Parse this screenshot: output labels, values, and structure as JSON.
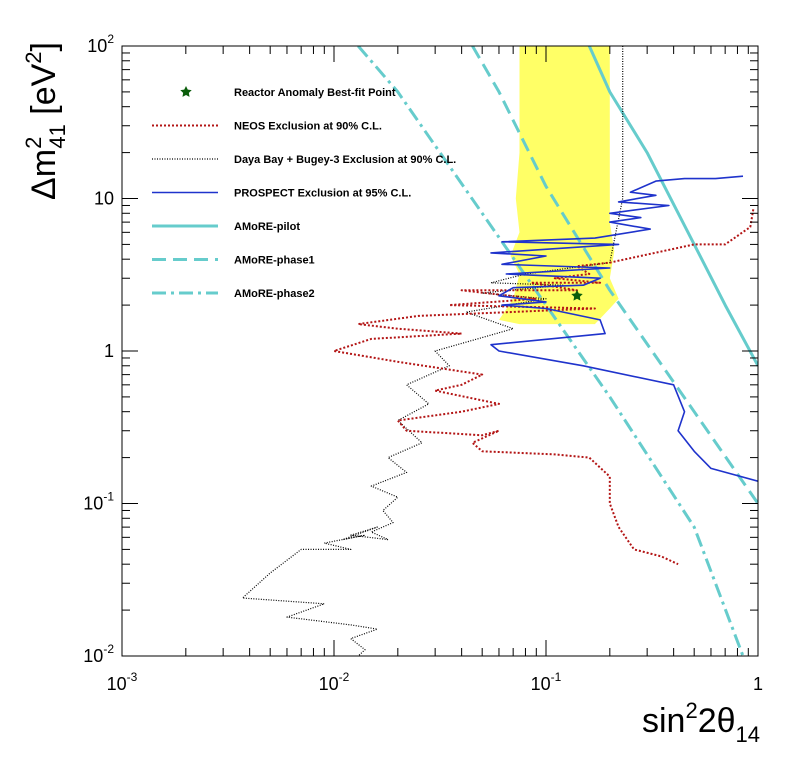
{
  "chart_data": {
    "type": "line",
    "xscale": "log",
    "yscale": "log",
    "xlim": [
      0.001,
      1
    ],
    "ylim": [
      0.01,
      100
    ],
    "x_ticks": [
      {
        "value": 0.001,
        "base": "10",
        "exp": "-3"
      },
      {
        "value": 0.01,
        "base": "10",
        "exp": "-2"
      },
      {
        "value": 0.1,
        "base": "10",
        "exp": "-1"
      },
      {
        "value": 1,
        "base": "1",
        "exp": ""
      }
    ],
    "y_ticks": [
      {
        "value": 0.01,
        "base": "10",
        "exp": "-2"
      },
      {
        "value": 0.1,
        "base": "10",
        "exp": "-1"
      },
      {
        "value": 1,
        "base": "1",
        "exp": ""
      },
      {
        "value": 10,
        "base": "10",
        "exp": ""
      },
      {
        "value": 100,
        "base": "10",
        "exp": "2"
      }
    ],
    "xlabel": {
      "main": "sin",
      "sup": "2",
      "mid": "2θ",
      "sub": "14"
    },
    "ylabel": {
      "main": "Δm",
      "sup": "2",
      "sub": "41",
      "unit_open": " [eV",
      "unit_sup": "2",
      "unit_close": "]"
    },
    "colors": {
      "neos": "#b31515",
      "dayabay": "#000000",
      "prospect": "#1f33cc",
      "amore": "#66cccc",
      "anomaly_region": "#ffff66",
      "best_fit": "#0b5d0b"
    },
    "legend": [
      {
        "label": "Reactor Anomaly Best-fit Point",
        "style": "marker"
      },
      {
        "label": "NEOS Exclusion at 90% C.L.",
        "style": "neos"
      },
      {
        "label": "Daya Bay + Bugey-3 Exclusion at 90% C.L.",
        "style": "dayabay"
      },
      {
        "label": "PROSPECT Exclusion at 95% C.L.",
        "style": "prospect"
      },
      {
        "label": "AMoRE-pilot",
        "style": "amore-solid"
      },
      {
        "label": "AMoRE-phase1",
        "style": "amore-dashed"
      },
      {
        "label": "AMoRE-phase2",
        "style": "amore-dashdot"
      }
    ],
    "best_fit_point": {
      "x": 0.14,
      "y": 2.3
    },
    "anomaly_region": {
      "left": [
        [
          0.075,
          100
        ],
        [
          0.075,
          20
        ],
        [
          0.072,
          10
        ],
        [
          0.075,
          6
        ],
        [
          0.068,
          4.2
        ],
        [
          0.075,
          3.2
        ],
        [
          0.07,
          2.2
        ],
        [
          0.06,
          1.6
        ],
        [
          0.075,
          1.5
        ]
      ],
      "right": [
        [
          0.17,
          1.5
        ],
        [
          0.2,
          1.9
        ],
        [
          0.22,
          2.2
        ],
        [
          0.2,
          3.0
        ],
        [
          0.21,
          4.5
        ],
        [
          0.2,
          7
        ],
        [
          0.2,
          12
        ],
        [
          0.2,
          25
        ],
        [
          0.2,
          100
        ]
      ]
    },
    "series": [
      {
        "name": "AMoRE-pilot",
        "style": "amore-solid",
        "x": [
          0.16,
          0.2,
          0.3,
          0.5,
          0.7,
          1.0
        ],
        "y": [
          100,
          50,
          20,
          5,
          2,
          0.8
        ]
      },
      {
        "name": "AMoRE-phase1",
        "style": "amore-dashed",
        "x": [
          0.045,
          0.06,
          0.1,
          0.2,
          0.5,
          1.0
        ],
        "y": [
          100,
          50,
          12,
          2.5,
          0.4,
          0.1
        ]
      },
      {
        "name": "AMoRE-phase2",
        "style": "amore-dashdot",
        "x": [
          0.013,
          0.02,
          0.05,
          0.1,
          0.2,
          0.5,
          0.85
        ],
        "y": [
          100,
          50,
          8,
          2,
          0.5,
          0.07,
          0.01
        ]
      },
      {
        "name": "Daya Bay + Bugey-3",
        "style": "dayabay",
        "x": [
          0.23,
          0.23,
          0.2,
          0.08,
          0.055,
          0.12,
          0.05,
          0.1,
          0.042,
          0.07,
          0.03,
          0.035,
          0.022,
          0.028,
          0.02,
          0.026,
          0.018,
          0.022,
          0.015,
          0.02,
          0.017,
          0.019,
          0.015,
          0.018,
          0.012,
          0.016,
          0.011,
          0.014,
          0.009,
          0.012,
          0.007,
          0.005,
          0.0037,
          0.009,
          0.006,
          0.012,
          0.016,
          0.012,
          0.014,
          0.013
        ],
        "y": [
          100,
          10,
          3.8,
          3.2,
          2.8,
          2.7,
          2.4,
          2.2,
          1.8,
          1.4,
          1.0,
          0.8,
          0.6,
          0.45,
          0.35,
          0.25,
          0.2,
          0.16,
          0.13,
          0.11,
          0.09,
          0.075,
          0.065,
          0.058,
          0.062,
          0.07,
          0.058,
          0.062,
          0.055,
          0.05,
          0.05,
          0.035,
          0.024,
          0.022,
          0.018,
          0.016,
          0.015,
          0.013,
          0.011,
          0.01
        ]
      },
      {
        "name": "NEOS",
        "style": "neos",
        "x": [
          0.95,
          0.92,
          0.7,
          0.5,
          0.2,
          0.14,
          0.16,
          0.11,
          0.18,
          0.085,
          0.14,
          0.04,
          0.09,
          0.035,
          0.17,
          0.025,
          0.013,
          0.02,
          0.04,
          0.015,
          0.01,
          0.02,
          0.05,
          0.04,
          0.03,
          0.06,
          0.04,
          0.02,
          0.022,
          0.05,
          0.06,
          0.045,
          0.05,
          0.11,
          0.16,
          0.2,
          0.2,
          0.22,
          0.26,
          0.35,
          0.42
        ],
        "y": [
          8.5,
          6.5,
          5.0,
          5.0,
          3.8,
          3.6,
          3.2,
          3.0,
          2.8,
          2.8,
          2.5,
          2.5,
          2.2,
          2.0,
          1.9,
          1.7,
          1.5,
          1.4,
          1.3,
          1.2,
          1.0,
          0.85,
          0.7,
          0.6,
          0.55,
          0.45,
          0.4,
          0.35,
          0.3,
          0.28,
          0.3,
          0.25,
          0.22,
          0.21,
          0.2,
          0.15,
          0.1,
          0.07,
          0.05,
          0.045,
          0.04
        ]
      },
      {
        "name": "PROSPECT",
        "style": "prospect",
        "x": [
          0.85,
          0.63,
          0.45,
          0.33,
          0.25,
          0.33,
          0.22,
          0.38,
          0.2,
          0.28,
          0.2,
          0.31,
          0.17,
          0.062,
          0.22,
          0.055,
          0.1,
          0.062,
          0.2,
          0.065,
          0.18,
          0.15,
          0.07,
          0.06,
          0.1,
          0.062,
          0.1,
          0.18,
          0.19,
          0.055,
          0.06,
          0.15,
          0.4,
          0.45,
          0.42,
          0.5,
          0.6,
          1.0
        ],
        "y": [
          14,
          13.5,
          13.5,
          13.0,
          11,
          10.5,
          9.5,
          9.0,
          8.0,
          7.5,
          7.0,
          6.3,
          5.5,
          5.2,
          5.0,
          4.4,
          4.2,
          3.7,
          3.5,
          3.2,
          3.0,
          2.7,
          2.6,
          2.3,
          2.1,
          2.0,
          1.9,
          1.6,
          1.3,
          1.1,
          1.0,
          0.8,
          0.6,
          0.4,
          0.3,
          0.22,
          0.17,
          0.14
        ]
      }
    ]
  }
}
